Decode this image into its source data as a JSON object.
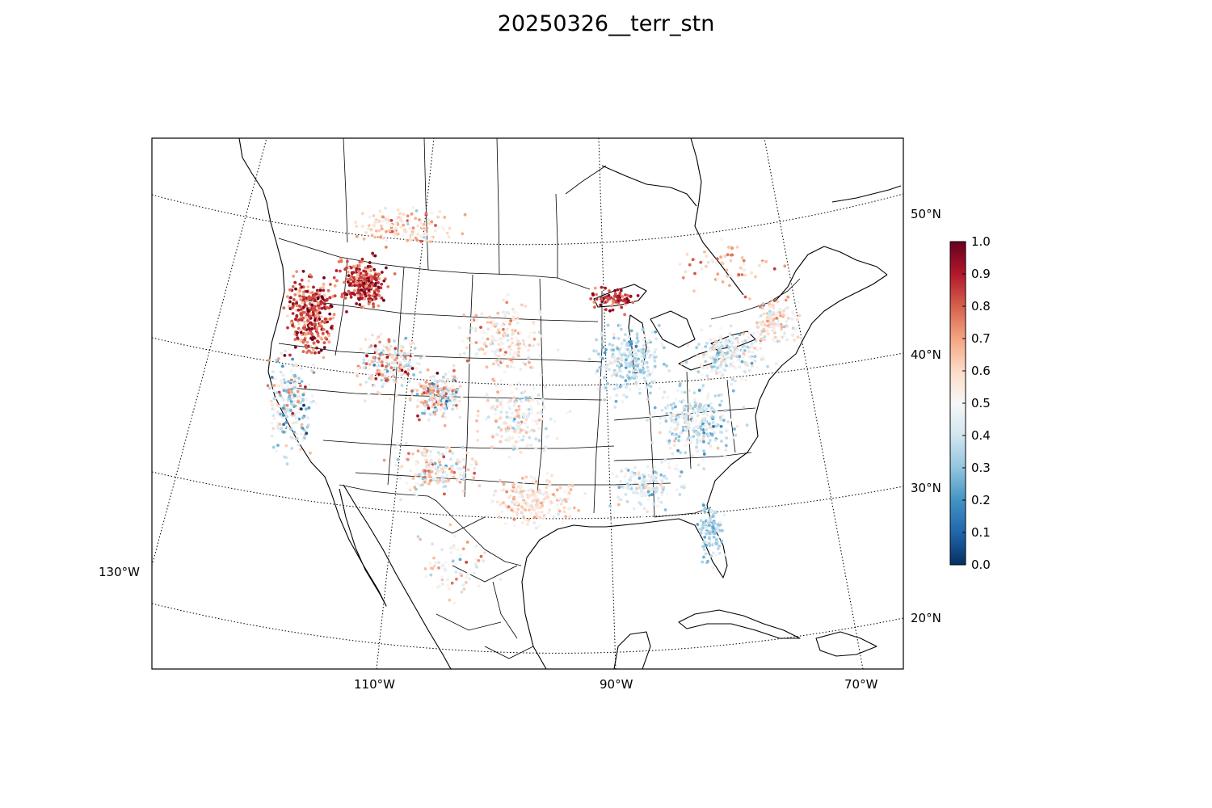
{
  "figure": {
    "title": "20250326__terr_stn"
  },
  "map": {
    "projection": "Lambert Conformal Conic",
    "region": "North America / CONUS",
    "layers": [
      "coastlines",
      "country-borders",
      "state-borders",
      "parallels",
      "meridians",
      "station-dots"
    ],
    "lat_labels": [
      "50°N",
      "40°N",
      "30°N",
      "20°N"
    ],
    "lon_labels": [
      "130°W",
      "110°W",
      "90°W",
      "70°W"
    ],
    "marker_note": "Several thousand station dots colored by value on a diverging red–blue scale; red dense in the Pacific Northwest and northern Rockies, mixed red/blue over the Rockies, predominantly light blue over the eastern US."
  },
  "colorbar": {
    "colormap": "RdBu_r",
    "vmin": 0.0,
    "vmax": 1.0,
    "ticks": [
      "0.0",
      "0.1",
      "0.2",
      "0.3",
      "0.4",
      "0.5",
      "0.6",
      "0.7",
      "0.8",
      "0.9",
      "1.0"
    ],
    "stops": [
      "#053061",
      "#2166ac",
      "#4393c3",
      "#92c5de",
      "#d1e5f0",
      "#f7f7f7",
      "#fddbc7",
      "#f4a582",
      "#d6604d",
      "#b2182b",
      "#67001f"
    ]
  }
}
